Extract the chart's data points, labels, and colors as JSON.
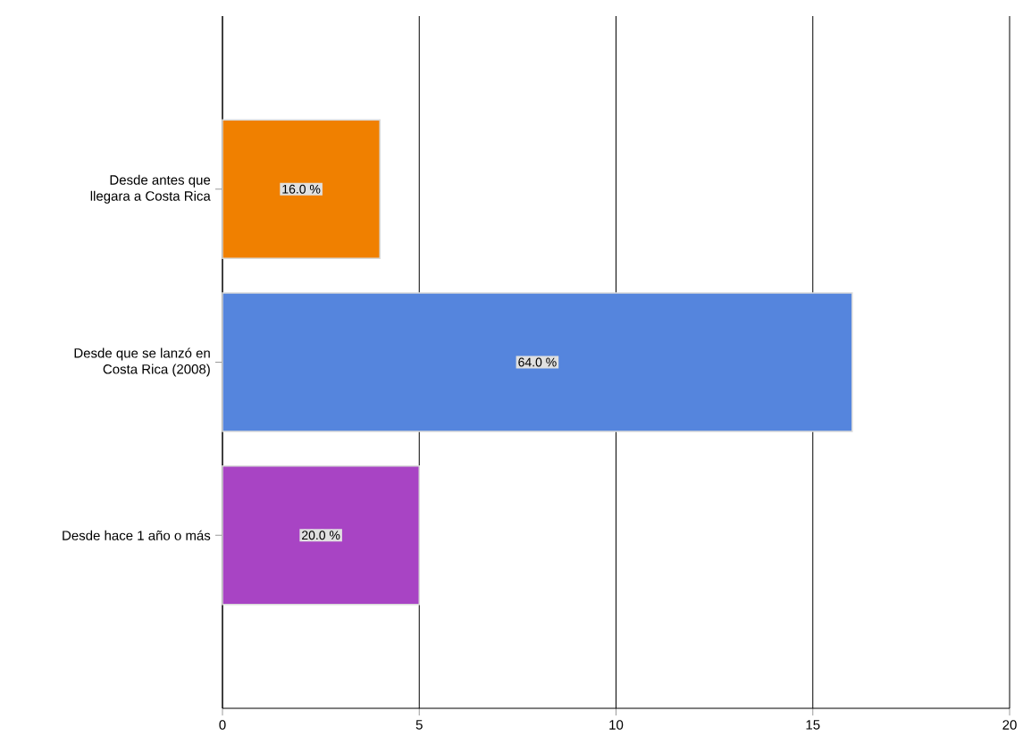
{
  "chart_data": {
    "type": "bar",
    "orientation": "horizontal",
    "categories": [
      "Desde antes que llegara a Costa Rica",
      "Desde que se lanzó en Costa Rica (2008)",
      "Desde hace 1 año o más"
    ],
    "values": [
      4,
      16,
      5
    ],
    "colors": [
      "#f08000",
      "#5585dd",
      "#a844c4"
    ],
    "annotations": [
      "16.0 %",
      "64.0 %",
      "20.0 %"
    ],
    "xlim": [
      0,
      20
    ],
    "xticks": [
      0,
      5,
      10,
      15,
      20
    ],
    "grid": "x"
  }
}
